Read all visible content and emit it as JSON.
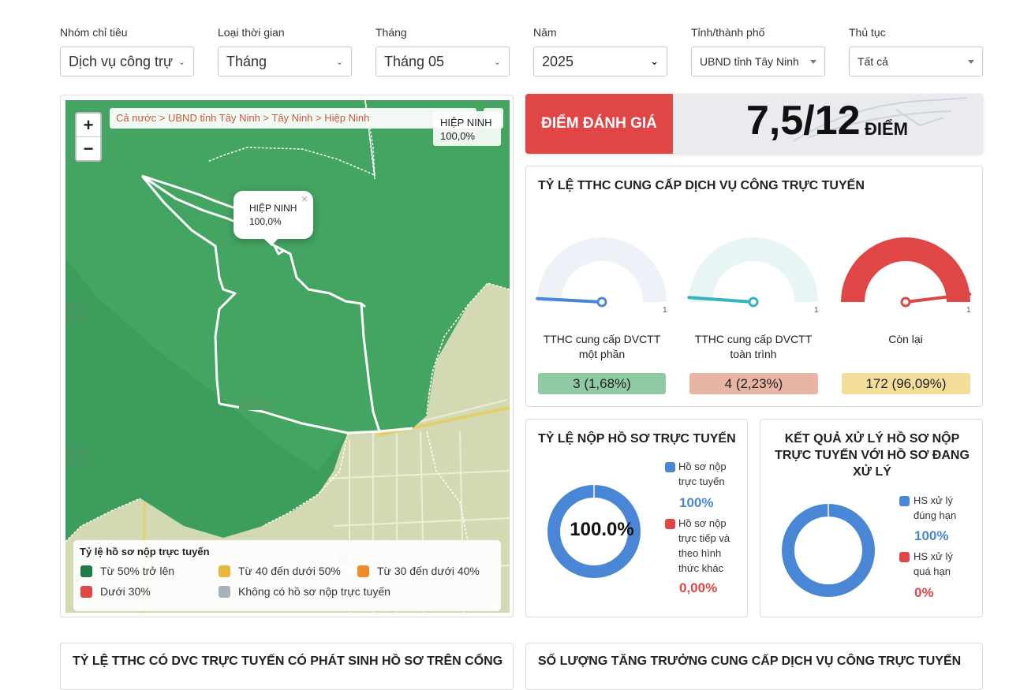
{
  "filters": [
    {
      "label": "Nhóm chỉ tiêu",
      "value": "Dịch vụ công trự"
    },
    {
      "label": "Loại thời gian",
      "value": "Tháng"
    },
    {
      "label": "Tháng",
      "value": "Tháng 05"
    },
    {
      "label": "Năm",
      "value": "2025"
    },
    {
      "label": "Tỉnh/thành phố",
      "value": "UBND tỉnh Tây Ninh"
    },
    {
      "label": "Thủ tục",
      "value": "Tất cả"
    }
  ],
  "map": {
    "breadcrumb": "Cả nước > UBND tỉnh Tây Ninh > Tây Ninh > Hiệp Ninh",
    "region_name": "HIỆP NINH",
    "region_value": "100,0%",
    "popup_name": "HIỆP NINH",
    "popup_value": "100,0%",
    "zoom_in": "+",
    "zoom_out": "−",
    "popup_close": "×",
    "legend_title": "Tỷ lệ hồ sơ nộp trực tuyến",
    "legend": [
      {
        "label": "Từ 50% trở lên",
        "color": "#1f7a43"
      },
      {
        "label": "Từ 40 đến dưới 50%",
        "color": "#e8b83a"
      },
      {
        "label": "Từ 30 đến dưới 40%",
        "color": "#f08a2c"
      },
      {
        "label": "Dưới 30%",
        "color": "#e04646"
      },
      {
        "label": "Không có hồ sơ nộp trực tuyến",
        "color": "#a9b2bc"
      }
    ]
  },
  "score": {
    "label": "ĐIỂM ĐÁNH GIÁ",
    "value": "7,5/12",
    "unit": "ĐIỂM"
  },
  "gauges_card": {
    "title": "TỶ LỆ TTHC CUNG CẤP DỊCH VỤ CÔNG TRỰC TUYẾN",
    "gauges": [
      {
        "label_line1": "TTHC cung cấp DVCTT",
        "label_line2": "một phần",
        "max": "1",
        "badge": "3 (1,68%)",
        "fraction": 0.0168,
        "arc_color": "#edf2f9",
        "needle_color": "#4a86d6",
        "badge_color": "#8fcaa4"
      },
      {
        "label_line1": "TTHC cung cấp DVCTT",
        "label_line2": "toàn trình",
        "max": "1",
        "badge": "4 (2,23%)",
        "fraction": 0.0223,
        "arc_color": "#e8f5f5",
        "needle_color": "#36b3bf",
        "badge_color": "#e8b5a5"
      },
      {
        "label_line1": "Còn lại",
        "label_line2": "",
        "max": "1",
        "badge": "172 (96,09%)",
        "fraction": 0.9609,
        "arc_color": "#e04646",
        "needle_color": "#e04646",
        "badge_color": "#f3dd9a"
      }
    ]
  },
  "online_card": {
    "title": "TỶ LỆ NỘP HỒ SƠ TRỰC TUYẾN",
    "center": "100.0%",
    "items": [
      {
        "line1": "Hồ sơ nộp",
        "line2": "trực tuyến",
        "line3": "",
        "line4": "",
        "value": "100%",
        "color": "#4a86d6"
      },
      {
        "line1": "Hồ sơ nộp",
        "line2": "trực tiếp và",
        "line3": "theo hình",
        "line4": "thức khác",
        "value": "0,00%",
        "color": "#e04646"
      }
    ]
  },
  "result_card": {
    "title_line1": "KẾT QUẢ XỬ LÝ HỒ SƠ NỘP",
    "title_line2": "TRỰC TUYẾN VỚI HỒ SƠ ĐANG",
    "title_line3": "XỬ LÝ",
    "items": [
      {
        "line1": "HS xử lý",
        "line2": "đúng hạn",
        "value": "100%",
        "color": "#4a86d6"
      },
      {
        "line1": "HS xử lý",
        "line2": "quá hạn",
        "value": "0%",
        "color": "#e04646"
      }
    ]
  },
  "bottom": {
    "left_title": "TỶ LỆ TTHC CÓ DVC TRỰC TUYẾN CÓ PHÁT SINH HỒ SƠ TRÊN CỔNG",
    "right_title": "SỐ LƯỢNG TĂNG TRƯỞNG CUNG CẤP DỊCH VỤ CÔNG TRỰC TUYẾN"
  }
}
